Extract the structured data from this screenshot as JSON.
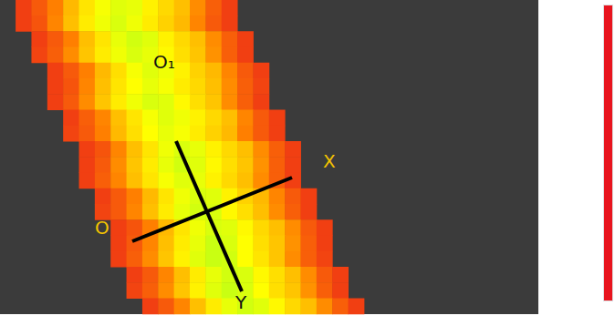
{
  "chart_data": {
    "type": "heatmap",
    "columns": 34,
    "rows": [
      {
        "start": 1,
        "values": [
          0.08,
          0.13,
          0.2,
          0.29,
          0.36,
          0.41,
          0.44,
          0.43,
          0.38,
          0.34,
          0.3,
          0.22,
          0.14,
          0.08
        ]
      },
      {
        "start": 1,
        "values": [
          0.08,
          0.12,
          0.21,
          0.3,
          0.37,
          0.42,
          0.45,
          0.42,
          0.37,
          0.33,
          0.29,
          0.21,
          0.13,
          0.08
        ]
      },
      {
        "start": 2,
        "values": [
          0.08,
          0.13,
          0.2,
          0.3,
          0.36,
          0.43,
          0.46,
          0.44,
          0.38,
          0.34,
          0.3,
          0.22,
          0.14,
          0.08
        ]
      },
      {
        "start": 2,
        "values": [
          0.09,
          0.14,
          0.22,
          0.31,
          0.37,
          0.42,
          0.45,
          0.43,
          0.39,
          0.35,
          0.31,
          0.23,
          0.14,
          0.08
        ]
      },
      {
        "start": 3,
        "values": [
          0.08,
          0.13,
          0.2,
          0.29,
          0.35,
          0.41,
          0.44,
          0.42,
          0.38,
          0.33,
          0.29,
          0.21,
          0.13,
          0.08
        ]
      },
      {
        "start": 3,
        "values": [
          0.08,
          0.12,
          0.21,
          0.3,
          0.36,
          0.4,
          0.43,
          0.41,
          0.37,
          0.34,
          0.3,
          0.22,
          0.14,
          0.09
        ]
      },
      {
        "start": 3,
        "values": [
          0.08,
          0.13,
          0.22,
          0.31,
          0.37,
          0.42,
          0.45,
          0.44,
          0.39,
          0.35,
          0.31,
          0.22,
          0.14,
          0.08
        ]
      },
      {
        "start": 4,
        "values": [
          0.08,
          0.14,
          0.21,
          0.3,
          0.36,
          0.41,
          0.44,
          0.42,
          0.38,
          0.34,
          0.3,
          0.21,
          0.13,
          0.08
        ]
      },
      {
        "start": 4,
        "values": [
          0.09,
          0.13,
          0.2,
          0.29,
          0.35,
          0.4,
          0.43,
          0.41,
          0.37,
          0.33,
          0.29,
          0.2,
          0.13,
          0.08
        ]
      },
      {
        "start": 5,
        "values": [
          0.08,
          0.12,
          0.21,
          0.3,
          0.36,
          0.42,
          0.45,
          0.43,
          0.38,
          0.34,
          0.3,
          0.22,
          0.14,
          0.08
        ]
      },
      {
        "start": 5,
        "values": [
          0.08,
          0.13,
          0.22,
          0.31,
          0.37,
          0.43,
          0.46,
          0.44,
          0.39,
          0.35,
          0.31,
          0.23,
          0.14,
          0.08
        ]
      },
      {
        "start": 5,
        "values": [
          0.08,
          0.14,
          0.21,
          0.3,
          0.36,
          0.41,
          0.44,
          0.43,
          0.38,
          0.34,
          0.3,
          0.22,
          0.14,
          0.08
        ]
      },
      {
        "start": 6,
        "values": [
          0.08,
          0.13,
          0.2,
          0.29,
          0.36,
          0.42,
          0.45,
          0.44,
          0.38,
          0.33,
          0.29,
          0.21,
          0.13,
          0.08
        ]
      },
      {
        "start": 6,
        "values": [
          0.09,
          0.13,
          0.21,
          0.3,
          0.37,
          0.43,
          0.46,
          0.45,
          0.39,
          0.35,
          0.3,
          0.22,
          0.14,
          0.08
        ]
      },
      {
        "start": 7,
        "values": [
          0.08,
          0.12,
          0.2,
          0.29,
          0.36,
          0.42,
          0.45,
          0.44,
          0.39,
          0.34,
          0.3,
          0.22,
          0.13,
          0.08
        ]
      },
      {
        "start": 7,
        "values": [
          0.08,
          0.13,
          0.21,
          0.3,
          0.37,
          0.43,
          0.47,
          0.45,
          0.4,
          0.35,
          0.31,
          0.23,
          0.14,
          0.08
        ]
      },
      {
        "start": 7,
        "values": [
          0.08,
          0.14,
          0.22,
          0.31,
          0.38,
          0.44,
          0.47,
          0.46,
          0.4,
          0.36,
          0.31,
          0.22,
          0.14,
          0.09
        ]
      },
      {
        "start": 8,
        "values": [
          0.08,
          0.13,
          0.21,
          0.3,
          0.37,
          0.43,
          0.46,
          0.45,
          0.39,
          0.35,
          0.3,
          0.22,
          0.13,
          0.08
        ]
      },
      {
        "start": 8,
        "values": [
          0.09,
          0.14,
          0.22,
          0.31,
          0.38,
          0.44,
          0.47,
          0.45,
          0.4,
          0.35,
          0.31,
          0.23,
          0.14,
          0.08
        ]
      },
      {
        "start": 9,
        "values": [
          0.08,
          0.13,
          0.21,
          0.3,
          0.37,
          0.43,
          0.46,
          0.44,
          0.39,
          0.34,
          0.3,
          0.22,
          0.14,
          0.08
        ]
      }
    ],
    "colorbar": {
      "range": [
        0,
        1
      ]
    },
    "tick_labels": false,
    "annotations": [
      "O₁",
      "X",
      "O",
      "Y"
    ]
  }
}
